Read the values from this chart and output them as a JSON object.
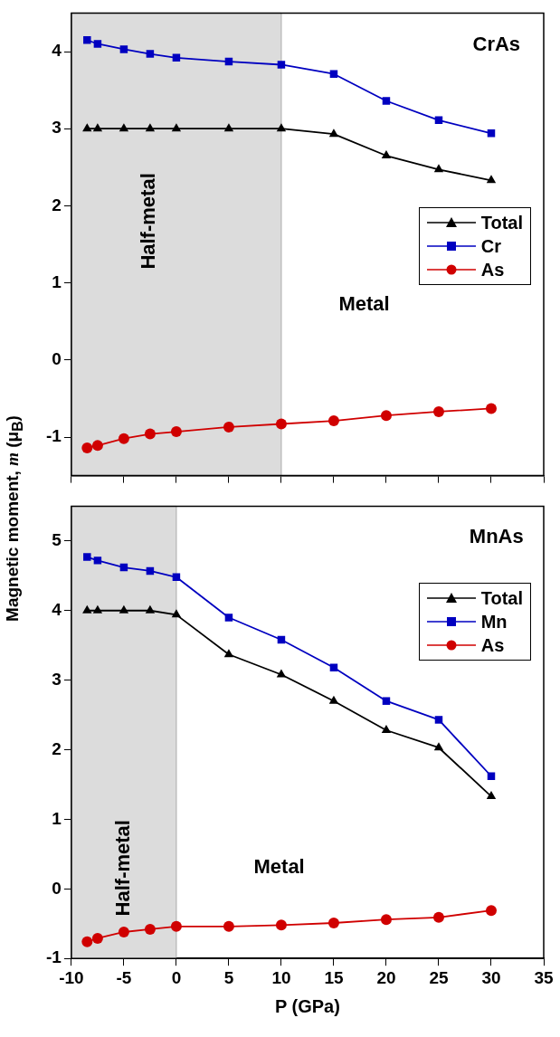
{
  "chart_data": [
    {
      "type": "line",
      "ylabel": "Magnetic moment, m (μ$_{B}$)",
      "xlim": [
        -10,
        35
      ],
      "xticks": [
        -10,
        -5,
        0,
        5,
        10,
        15,
        20,
        25,
        30,
        35
      ],
      "ylim": [
        -1.5,
        4.5
      ],
      "yticks": [
        -1,
        0,
        1,
        2,
        3,
        4
      ],
      "tick_labels": "y",
      "grid": false,
      "legend": "right",
      "annotations": [
        "CrAs",
        "Metal"
      ],
      "bands": [
        {
          "axis": "x",
          "from": -10,
          "to": 10,
          "label": "Half-metal",
          "color": "#dcdcdc"
        }
      ],
      "x": [
        -8.5,
        -7.5,
        -5,
        -2.5,
        0,
        5,
        10,
        15,
        20,
        25,
        30
      ],
      "series": [
        {
          "name": "Total",
          "color": "#000000",
          "marker": "triangle",
          "values": [
            3,
            3,
            3,
            3,
            3,
            3,
            3,
            2.93,
            2.65,
            2.47,
            2.33
          ]
        },
        {
          "name": "Cr",
          "color": "#0000c0",
          "marker": "square",
          "values": [
            4.15,
            4.1,
            4.03,
            3.97,
            3.92,
            3.87,
            3.83,
            3.71,
            3.36,
            3.11,
            2.94
          ]
        },
        {
          "name": "As",
          "color": "#d00000",
          "marker": "circle",
          "values": [
            -1.14,
            -1.11,
            -1.02,
            -0.96,
            -0.93,
            -0.87,
            -0.83,
            -0.79,
            -0.72,
            -0.67,
            -0.63
          ]
        }
      ]
    },
    {
      "type": "line",
      "xlabel": "P (GPa)",
      "xlim": [
        -10,
        35
      ],
      "xticks": [
        -10,
        -5,
        0,
        5,
        10,
        15,
        20,
        25,
        30,
        35
      ],
      "ylim": [
        -1,
        5.5
      ],
      "yticks": [
        -1,
        0,
        1,
        2,
        3,
        4,
        5
      ],
      "grid": false,
      "legend": "top right",
      "annotations": [
        "MnAs",
        "Metal"
      ],
      "bands": [
        {
          "axis": "x",
          "from": -10,
          "to": 0,
          "label": "Half-metal",
          "color": "#dcdcdc"
        }
      ],
      "x": [
        -8.5,
        -7.5,
        -5,
        -2.5,
        0,
        5,
        10,
        15,
        20,
        25,
        30
      ],
      "series": [
        {
          "name": "Total",
          "color": "#000000",
          "marker": "triangle",
          "values": [
            4,
            4,
            4,
            4,
            3.94,
            3.37,
            3.08,
            2.7,
            2.28,
            2.03,
            1.33
          ]
        },
        {
          "name": "Mn",
          "color": "#0000c0",
          "marker": "square",
          "values": [
            4.77,
            4.72,
            4.62,
            4.57,
            4.48,
            3.9,
            3.58,
            3.18,
            2.7,
            2.43,
            1.62
          ]
        },
        {
          "name": "As",
          "color": "#d00000",
          "marker": "circle",
          "values": [
            -0.76,
            -0.71,
            -0.62,
            -0.58,
            -0.54,
            -0.54,
            -0.52,
            -0.49,
            -0.44,
            -0.41,
            -0.31
          ]
        }
      ]
    }
  ]
}
